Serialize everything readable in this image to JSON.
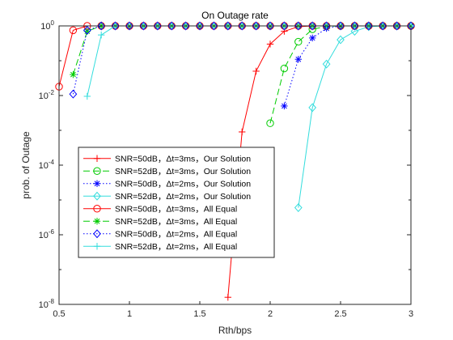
{
  "chart_data": {
    "type": "line",
    "title": "On Outage rate",
    "xlabel": "Rth/bps",
    "ylabel": "prob. of Outage",
    "xlim": [
      0.5,
      3
    ],
    "ylim": [
      1e-08,
      1
    ],
    "yscale": "log",
    "grid": false,
    "legend_position": "lower-left",
    "x_ticks": [
      "0.5",
      "1",
      "1.5",
      "2",
      "2.5",
      "3"
    ],
    "x_tick_values": [
      0.5,
      1,
      1.5,
      2,
      2.5,
      3
    ],
    "y_ticks": [
      {
        "base": "10",
        "exp": "0",
        "value": 1
      },
      {
        "base": "10",
        "exp": "-2",
        "value": 0.01
      },
      {
        "base": "10",
        "exp": "-4",
        "value": 0.0001
      },
      {
        "base": "10",
        "exp": "-6",
        "value": 1e-06
      },
      {
        "base": "10",
        "exp": "-8",
        "value": 1e-08
      }
    ],
    "series": [
      {
        "name": "SNR=50dB，Δt=3ms，Our Solution",
        "color": "#ff0000",
        "line": "solid",
        "marker": "plus",
        "x": [
          1.7,
          1.8,
          1.9,
          2.0,
          2.1,
          2.2,
          2.3,
          2.4,
          2.5,
          2.6,
          2.7,
          2.8,
          2.9,
          3.0
        ],
        "y": [
          1.6e-08,
          0.0009,
          0.05,
          0.3,
          0.7,
          0.95,
          1,
          1,
          1,
          1,
          1,
          1,
          1,
          1
        ]
      },
      {
        "name": "SNR=52dB，Δt=3ms，Our Solution",
        "color": "#00cc00",
        "line": "dashed",
        "marker": "circle",
        "x": [
          2.0,
          2.1,
          2.2,
          2.3,
          2.4,
          2.5,
          2.6,
          2.7,
          2.8,
          2.9,
          3.0
        ],
        "y": [
          0.0016,
          0.06,
          0.35,
          0.8,
          0.97,
          1,
          1,
          1,
          1,
          1,
          1
        ]
      },
      {
        "name": "SNR=50dB，Δt=2ms，Our Solution",
        "color": "#0000ff",
        "line": "dotted",
        "marker": "asterisk",
        "x": [
          2.1,
          2.2,
          2.3,
          2.4,
          2.5,
          2.6,
          2.7,
          2.8,
          2.9,
          3.0
        ],
        "y": [
          0.005,
          0.11,
          0.45,
          0.85,
          1,
          1,
          1,
          1,
          1,
          1
        ]
      },
      {
        "name": "SNR=52dB，Δt=2ms，Our Solution",
        "color": "#33dddd",
        "line": "solid",
        "marker": "diamond",
        "x": [
          2.2,
          2.3,
          2.4,
          2.5,
          2.6,
          2.7,
          2.8,
          2.9,
          3.0
        ],
        "y": [
          6e-06,
          0.0045,
          0.08,
          0.4,
          0.7,
          0.95,
          1,
          1,
          1
        ]
      },
      {
        "name": "SNR=50dB，Δt=3ms，All Equal",
        "color": "#ff0000",
        "line": "solid",
        "marker": "circle",
        "x": [
          0.5,
          0.6,
          0.7,
          0.8,
          0.9,
          1.0,
          1.1,
          1.2,
          1.3,
          1.4,
          1.5,
          1.6,
          1.7,
          1.8,
          1.9,
          2.0,
          2.1,
          2.2,
          2.3,
          2.4,
          2.5,
          2.6,
          2.7,
          2.8,
          2.9,
          3.0
        ],
        "y": [
          0.018,
          0.75,
          1,
          1,
          1,
          1,
          1,
          1,
          1,
          1,
          1,
          1,
          1,
          1,
          1,
          1,
          1,
          1,
          1,
          1,
          1,
          1,
          1,
          1,
          1,
          1
        ]
      },
      {
        "name": "SNR=52dB，Δt=3ms，All Equal",
        "color": "#00cc00",
        "line": "dashed",
        "marker": "asterisk",
        "x": [
          0.6,
          0.7,
          0.8,
          0.9,
          1.0,
          1.1,
          1.2,
          1.3,
          1.4,
          1.5,
          1.6,
          1.7,
          1.8,
          1.9,
          2.0,
          2.1,
          2.2,
          2.3,
          2.4,
          2.5,
          2.6,
          2.7,
          2.8,
          2.9,
          3.0
        ],
        "y": [
          0.04,
          0.7,
          1,
          1,
          1,
          1,
          1,
          1,
          1,
          1,
          1,
          1,
          1,
          1,
          1,
          1,
          1,
          1,
          1,
          1,
          1,
          1,
          1,
          1,
          1
        ]
      },
      {
        "name": "SNR=50dB，Δt=2ms，All Equal",
        "color": "#0000ff",
        "line": "dotted",
        "marker": "diamond",
        "x": [
          0.6,
          0.7,
          0.8,
          0.9,
          1.0,
          1.1,
          1.2,
          1.3,
          1.4,
          1.5,
          1.6,
          1.7,
          1.8,
          1.9,
          2.0,
          2.1,
          2.2,
          2.3,
          2.4,
          2.5,
          2.6,
          2.7,
          2.8,
          2.9,
          3.0
        ],
        "y": [
          0.011,
          0.75,
          1,
          1,
          1,
          1,
          1,
          1,
          1,
          1,
          1,
          1,
          1,
          1,
          1,
          1,
          1,
          1,
          1,
          1,
          1,
          1,
          1,
          1,
          1
        ]
      },
      {
        "name": "SNR=52dB，Δt=2ms，All Equal",
        "color": "#33dddd",
        "line": "solid",
        "marker": "plus",
        "x": [
          0.7,
          0.8,
          0.9,
          1.0,
          1.1,
          1.2,
          1.3,
          1.4,
          1.5,
          1.6,
          1.7,
          1.8,
          1.9,
          2.0,
          2.1,
          2.2,
          2.3,
          2.4,
          2.5,
          2.6,
          2.7,
          2.8,
          2.9,
          3.0
        ],
        "y": [
          0.0095,
          0.55,
          1,
          1,
          1,
          1,
          1,
          1,
          1,
          1,
          1,
          1,
          1,
          1,
          1,
          1,
          1,
          1,
          1,
          1,
          1,
          1,
          1,
          1
        ]
      }
    ]
  }
}
